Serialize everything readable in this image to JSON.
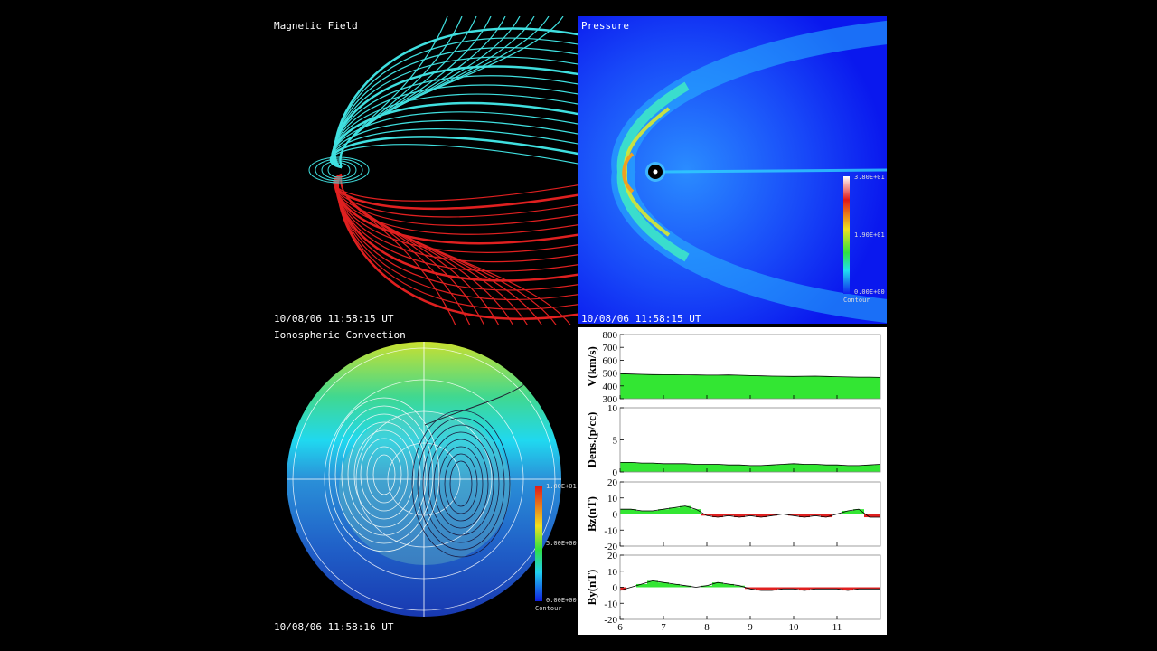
{
  "panels": {
    "magnetic_field": {
      "title": "Magnetic Field",
      "timestamp": "10/08/06 11:58:15 UT"
    },
    "pressure": {
      "title": "Pressure",
      "timestamp": "10/08/06 11:58:15 UT",
      "colorbar_labels": [
        "3.80E+01",
        "1.90E+01",
        "0.00E+00"
      ],
      "colorbar_caption": "Contour"
    },
    "ionosphere": {
      "title": "Ionospheric Convection",
      "timestamp": "10/08/06 11:58:16 UT",
      "colorbar_labels": [
        "1.00E+01",
        "5.00E+00",
        "0.00E+00"
      ],
      "colorbar_caption": "Contour"
    }
  },
  "chart_data": [
    {
      "type": "area",
      "y_label": "V(km/s)",
      "xlim": [
        6,
        12
      ],
      "xticks": [
        6,
        7,
        8,
        9,
        10,
        11
      ],
      "ylim": [
        300,
        800
      ],
      "yticks": [
        300,
        400,
        500,
        600,
        700,
        800
      ],
      "color": "#33e633",
      "negative_color": "#e02020",
      "x": [
        6,
        6.25,
        6.5,
        6.75,
        7,
        7.25,
        7.5,
        7.75,
        8,
        8.25,
        8.5,
        8.75,
        9,
        9.25,
        9.5,
        9.75,
        10,
        10.25,
        10.5,
        10.75,
        11,
        11.25,
        11.5,
        11.75,
        12
      ],
      "values": [
        495,
        492,
        490,
        488,
        487,
        487,
        486,
        485,
        484,
        484,
        485,
        483,
        480,
        478,
        476,
        475,
        474,
        475,
        476,
        474,
        472,
        470,
        468,
        468,
        466
      ]
    },
    {
      "type": "area",
      "y_label": "Dens.(p/cc)",
      "xlim": [
        6,
        12
      ],
      "xticks": [
        6,
        7,
        8,
        9,
        10,
        11
      ],
      "ylim": [
        0,
        10
      ],
      "yticks": [
        0,
        5,
        10
      ],
      "color": "#33e633",
      "negative_color": "#e02020",
      "x": [
        6,
        6.25,
        6.5,
        6.75,
        7,
        7.25,
        7.5,
        7.75,
        8,
        8.25,
        8.5,
        8.75,
        9,
        9.25,
        9.5,
        9.75,
        10,
        10.25,
        10.5,
        10.75,
        11,
        11.25,
        11.5,
        11.75,
        12
      ],
      "values": [
        1.5,
        1.5,
        1.4,
        1.4,
        1.3,
        1.3,
        1.3,
        1.2,
        1.2,
        1.2,
        1.1,
        1.1,
        1.0,
        1.0,
        1.1,
        1.2,
        1.3,
        1.2,
        1.2,
        1.1,
        1.1,
        1.0,
        1.0,
        1.1,
        1.2
      ]
    },
    {
      "type": "area",
      "y_label": "Bz(nT)",
      "xlim": [
        6,
        12
      ],
      "xticks": [
        6,
        7,
        8,
        9,
        10,
        11
      ],
      "ylim": [
        -20,
        20
      ],
      "yticks": [
        -20,
        -10,
        0,
        10,
        20
      ],
      "color": "#33e633",
      "negative_color": "#e02020",
      "x": [
        6,
        6.25,
        6.5,
        6.75,
        7,
        7.25,
        7.5,
        7.75,
        8,
        8.25,
        8.5,
        8.75,
        9,
        9.25,
        9.5,
        9.75,
        10,
        10.25,
        10.5,
        10.75,
        11,
        11.25,
        11.5,
        11.75,
        12
      ],
      "values": [
        3,
        3,
        2,
        2,
        3,
        4,
        5,
        3,
        -1,
        -2,
        -1,
        -2,
        -1,
        -2,
        -1,
        0,
        -1,
        -2,
        -1,
        -2,
        0,
        2,
        3,
        -2,
        -2
      ]
    },
    {
      "type": "area",
      "y_label": "By(nT)",
      "xlim": [
        6,
        12
      ],
      "xticks": [
        6,
        7,
        8,
        9,
        10,
        11
      ],
      "ylim": [
        -20,
        20
      ],
      "yticks": [
        -20,
        -10,
        0,
        10,
        20
      ],
      "color": "#33e633",
      "negative_color": "#e02020",
      "x": [
        6,
        6.25,
        6.5,
        6.75,
        7,
        7.25,
        7.5,
        7.75,
        8,
        8.25,
        8.5,
        8.75,
        9,
        9.25,
        9.5,
        9.75,
        10,
        10.25,
        10.5,
        10.75,
        11,
        11.25,
        11.5,
        11.75,
        12
      ],
      "values": [
        -2,
        0,
        2,
        4,
        3,
        2,
        1,
        0,
        1,
        3,
        2,
        1,
        -1,
        -2,
        -2,
        -1,
        -1,
        -2,
        -1,
        -1,
        -1,
        -2,
        -1,
        -1,
        -1
      ]
    }
  ]
}
